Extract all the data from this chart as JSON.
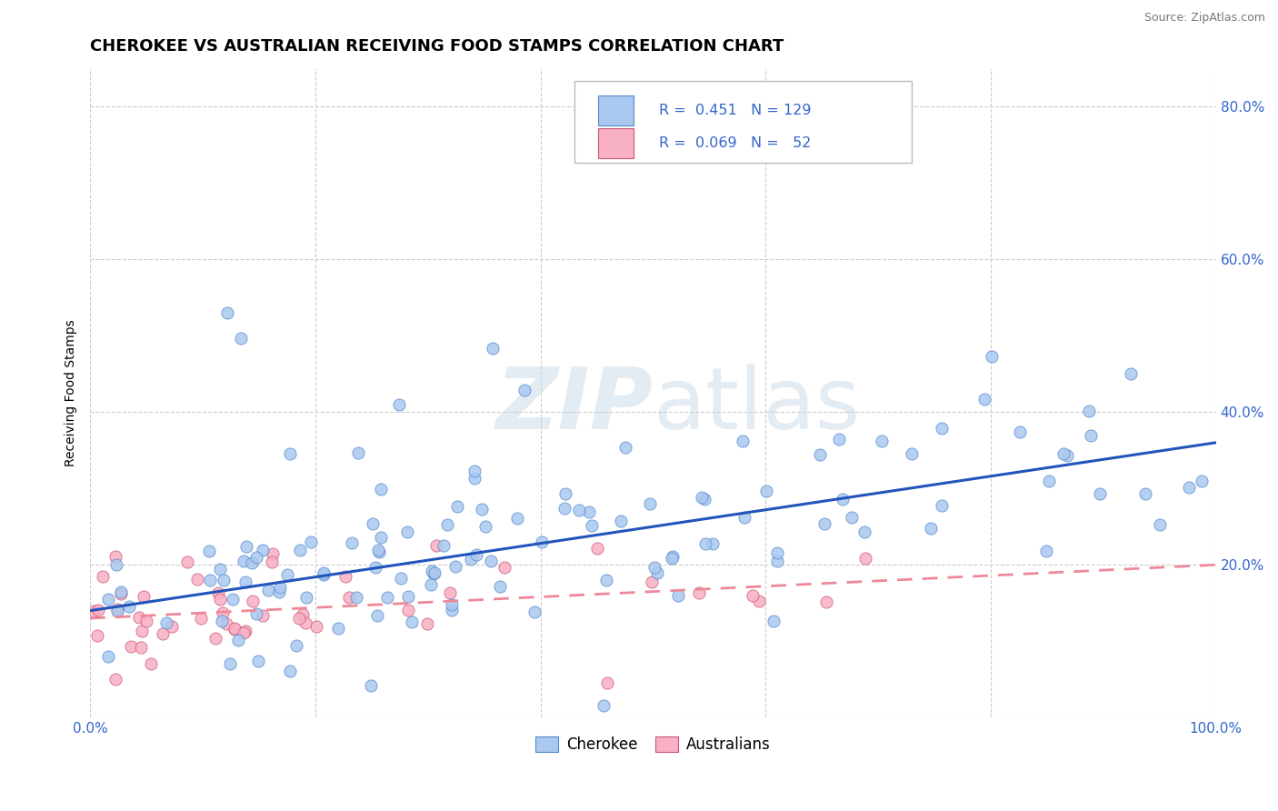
{
  "title": "CHEROKEE VS AUSTRALIAN RECEIVING FOOD STAMPS CORRELATION CHART",
  "source_text": "Source: ZipAtlas.com",
  "ylabel": "Receiving Food Stamps",
  "xlim": [
    0.0,
    1.0
  ],
  "ylim": [
    0.0,
    0.85
  ],
  "xticks": [
    0.0,
    0.2,
    0.4,
    0.6,
    0.8,
    1.0
  ],
  "yticks": [
    0.0,
    0.2,
    0.4,
    0.6,
    0.8
  ],
  "cherokee_color": "#aac8f0",
  "cherokee_edge": "#5588cc",
  "australians_color": "#f8b0c4",
  "australians_edge": "#cc5577",
  "cherokee_R": 0.451,
  "cherokee_N": 129,
  "australians_R": 0.069,
  "australians_N": 52,
  "background_color": "#ffffff",
  "grid_color": "#cccccc",
  "watermark_color": "#c8d8e8",
  "legend_color": "#3366cc",
  "cherokee_line_color": "#2255bb",
  "australians_line_color": "#ee8899",
  "title_fontsize": 13,
  "axis_label_fontsize": 10,
  "tick_fontsize": 11
}
